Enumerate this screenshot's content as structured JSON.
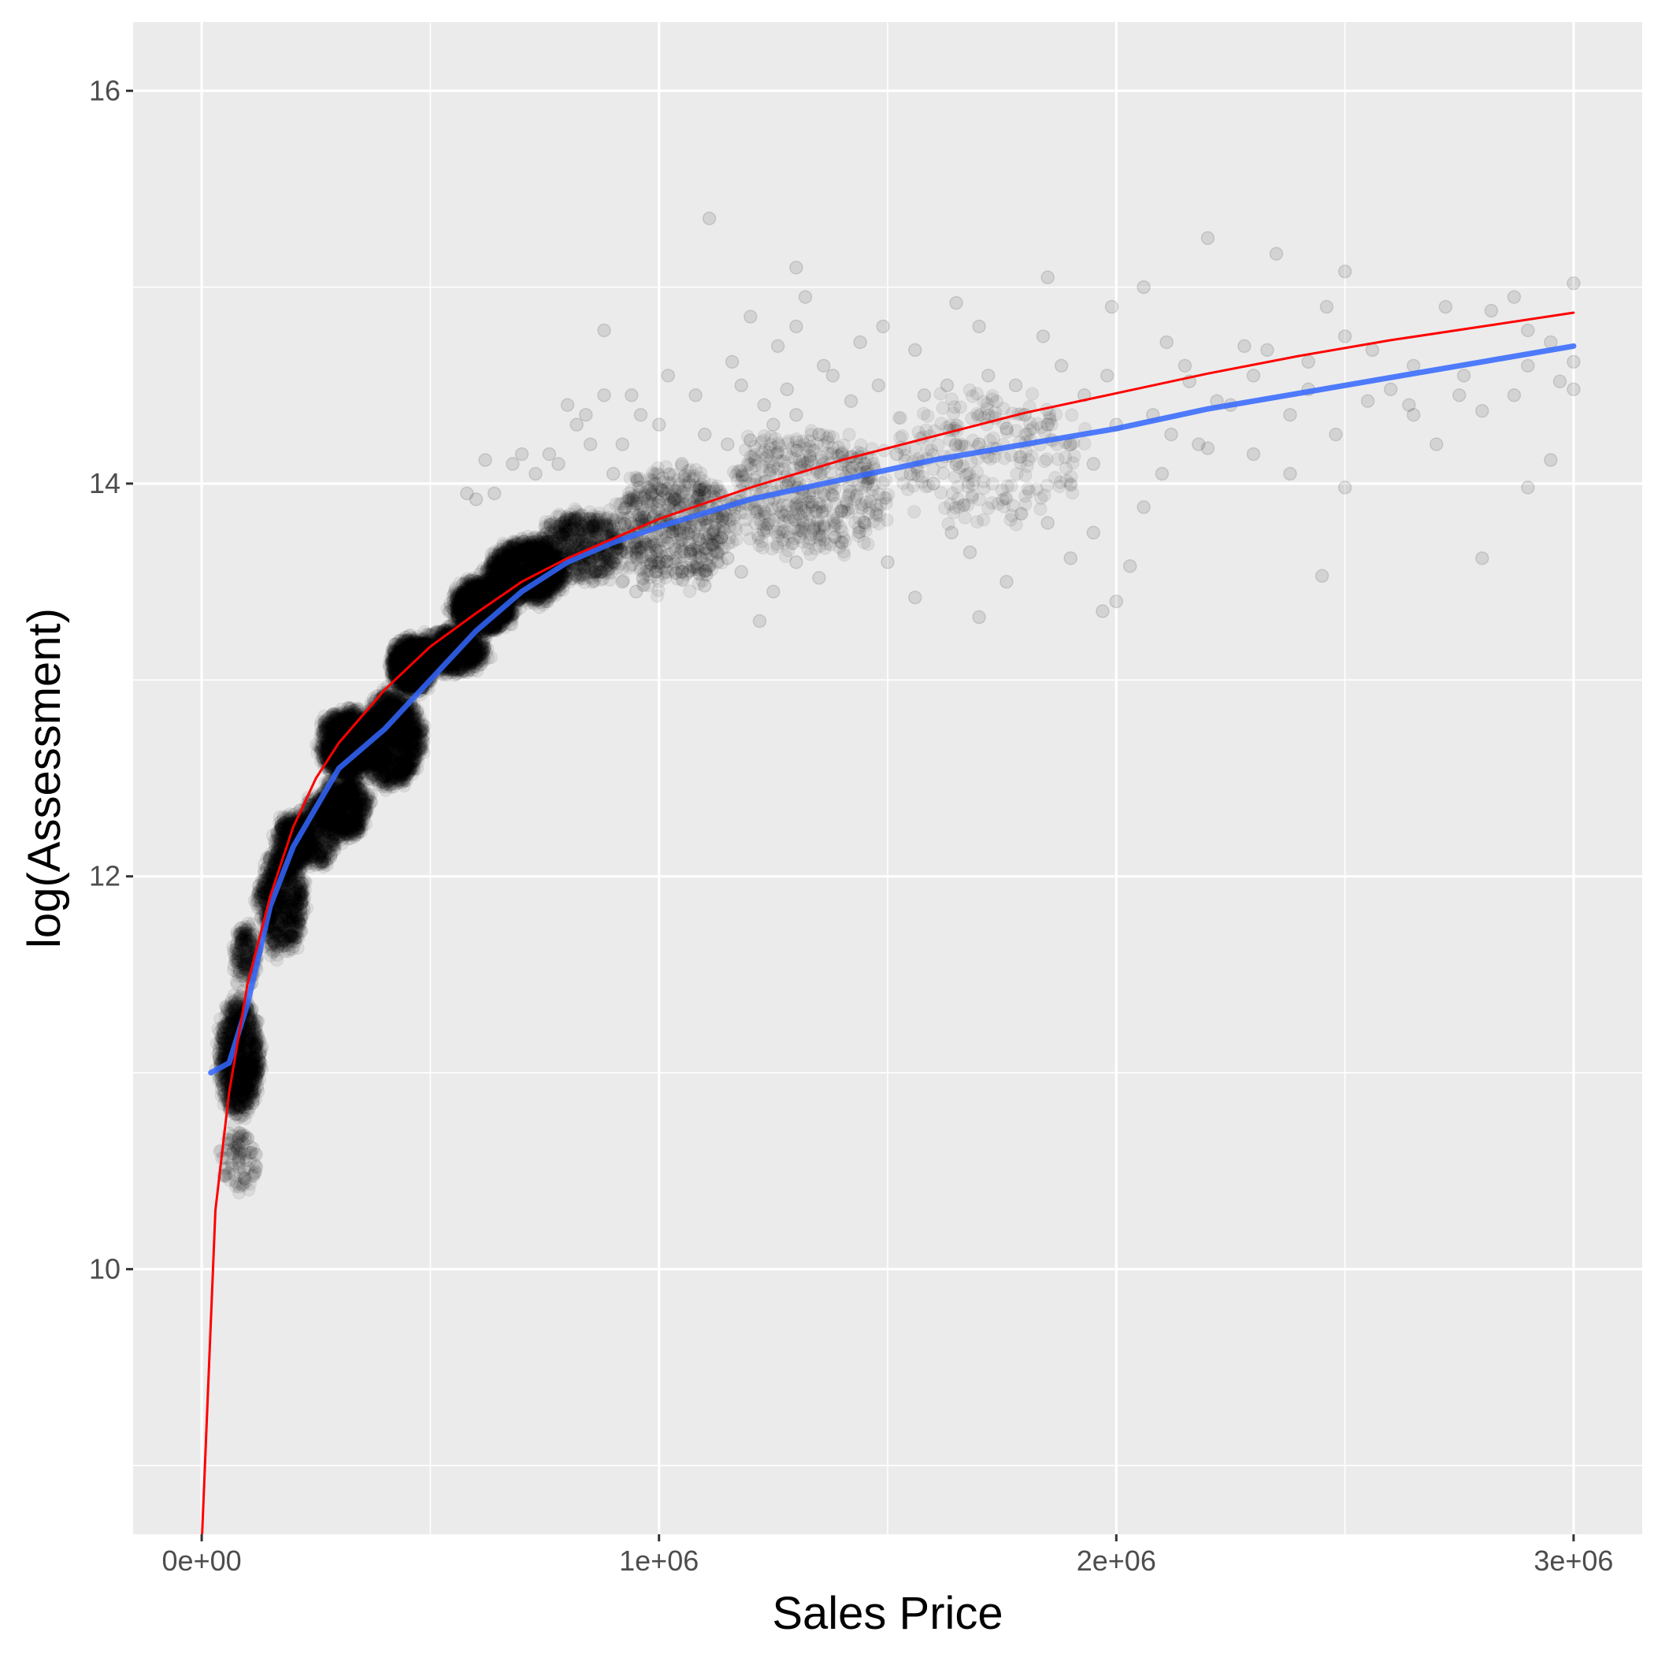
{
  "chart_data": {
    "type": "scatter",
    "xlabel": "Sales Price",
    "ylabel": "log(Assessment)",
    "xlim": [
      -150000,
      3150000
    ],
    "ylim": [
      8.65,
      16.35
    ],
    "x_ticks": [
      {
        "value": 0,
        "label": "0e+00"
      },
      {
        "value": 1000000,
        "label": "1e+06"
      },
      {
        "value": 2000000,
        "label": "2e+06"
      },
      {
        "value": 3000000,
        "label": "3e+06"
      }
    ],
    "y_ticks": [
      {
        "value": 10,
        "label": "10"
      },
      {
        "value": 12,
        "label": "12"
      },
      {
        "value": 14,
        "label": "14"
      },
      {
        "value": 16,
        "label": "16"
      }
    ],
    "x_minor_gridlines": [
      500000,
      1500000,
      2500000
    ],
    "y_minor_gridlines": [
      9,
      11,
      13,
      15
    ],
    "grid": true,
    "background": "#ebebeb",
    "point_color": "#000000",
    "point_alpha": 0.07,
    "points": [
      [
        1110000,
        15.35
      ],
      [
        1300000,
        15.1
      ],
      [
        1320000,
        14.95
      ],
      [
        1300000,
        14.8
      ],
      [
        880000,
        14.78
      ],
      [
        1490000,
        14.8
      ],
      [
        1650000,
        14.92
      ],
      [
        1850000,
        15.05
      ],
      [
        2060000,
        15.0
      ],
      [
        2200000,
        15.25
      ],
      [
        2350000,
        15.17
      ],
      [
        2500000,
        15.08
      ],
      [
        2280000,
        14.7
      ],
      [
        2460000,
        14.9
      ],
      [
        2500000,
        14.75
      ],
      [
        2720000,
        14.9
      ],
      [
        2870000,
        14.95
      ],
      [
        3000000,
        15.02
      ],
      [
        2820000,
        14.88
      ],
      [
        2900000,
        14.78
      ],
      [
        2950000,
        14.72
      ],
      [
        3000000,
        14.62
      ],
      [
        3000000,
        14.48
      ],
      [
        2970000,
        14.52
      ],
      [
        2870000,
        14.45
      ],
      [
        2800000,
        14.37
      ],
      [
        2750000,
        14.45
      ],
      [
        2650000,
        14.6
      ],
      [
        2600000,
        14.48
      ],
      [
        2550000,
        14.42
      ],
      [
        2420000,
        14.48
      ],
      [
        2380000,
        14.35
      ],
      [
        2300000,
        14.55
      ],
      [
        2250000,
        14.4
      ],
      [
        2180000,
        14.2
      ],
      [
        2120000,
        14.25
      ],
      [
        2080000,
        14.35
      ],
      [
        2000000,
        14.3
      ],
      [
        1950000,
        14.1
      ],
      [
        1900000,
        14.2
      ],
      [
        1850000,
        14.3
      ],
      [
        1800000,
        14.35
      ],
      [
        1760000,
        14.28
      ],
      [
        1700000,
        14.2
      ],
      [
        1650000,
        14.1
      ],
      [
        1600000,
        14.0
      ],
      [
        1550000,
        14.05
      ],
      [
        1520000,
        14.15
      ],
      [
        1450000,
        14.1
      ],
      [
        1400000,
        14.15
      ],
      [
        1350000,
        14.25
      ],
      [
        1300000,
        14.35
      ],
      [
        1250000,
        14.3
      ],
      [
        1200000,
        14.22
      ],
      [
        1150000,
        14.2
      ],
      [
        1100000,
        14.25
      ],
      [
        1050000,
        14.1
      ],
      [
        1000000,
        14.3
      ],
      [
        960000,
        14.35
      ],
      [
        920000,
        14.2
      ],
      [
        900000,
        14.05
      ],
      [
        880000,
        14.45
      ],
      [
        850000,
        14.2
      ],
      [
        820000,
        14.3
      ],
      [
        780000,
        14.1
      ],
      [
        760000,
        14.15
      ],
      [
        730000,
        14.05
      ],
      [
        2950000,
        14.12
      ],
      [
        2900000,
        13.98
      ],
      [
        2800000,
        13.62
      ],
      [
        2700000,
        14.2
      ],
      [
        2650000,
        14.35
      ],
      [
        2500000,
        13.98
      ],
      [
        2480000,
        14.25
      ],
      [
        2450000,
        13.53
      ],
      [
        2380000,
        14.05
      ],
      [
        2300000,
        14.15
      ],
      [
        2200000,
        14.18
      ],
      [
        2100000,
        14.05
      ],
      [
        2060000,
        13.88
      ],
      [
        2030000,
        13.58
      ],
      [
        2000000,
        13.4
      ],
      [
        1970000,
        13.35
      ],
      [
        1950000,
        13.75
      ],
      [
        1900000,
        13.62
      ],
      [
        1850000,
        13.8
      ],
      [
        1760000,
        13.5
      ],
      [
        1700000,
        13.32
      ],
      [
        1680000,
        13.65
      ],
      [
        1640000,
        13.75
      ],
      [
        1560000,
        13.42
      ],
      [
        1500000,
        13.6
      ],
      [
        1450000,
        13.8
      ],
      [
        1400000,
        13.7
      ],
      [
        1350000,
        13.52
      ],
      [
        1300000,
        13.6
      ],
      [
        1250000,
        13.45
      ],
      [
        1220000,
        13.3
      ],
      [
        1180000,
        13.55
      ],
      [
        1150000,
        13.62
      ],
      [
        1100000,
        13.48
      ],
      [
        1050000,
        13.55
      ],
      [
        1000000,
        13.6
      ],
      [
        950000,
        13.45
      ],
      [
        920000,
        13.5
      ],
      [
        900000,
        13.6
      ],
      [
        870000,
        13.68
      ],
      [
        2220000,
        14.42
      ],
      [
        2150000,
        14.6
      ],
      [
        1980000,
        14.55
      ],
      [
        1930000,
        14.45
      ],
      [
        1880000,
        14.6
      ],
      [
        1780000,
        14.5
      ],
      [
        1720000,
        14.55
      ],
      [
        1630000,
        14.5
      ],
      [
        1580000,
        14.45
      ],
      [
        1480000,
        14.5
      ],
      [
        1420000,
        14.42
      ],
      [
        1380000,
        14.55
      ],
      [
        1280000,
        14.48
      ],
      [
        1230000,
        14.4
      ],
      [
        1180000,
        14.5
      ],
      [
        1080000,
        14.45
      ],
      [
        1020000,
        14.55
      ],
      [
        940000,
        14.45
      ],
      [
        2560000,
        14.68
      ],
      [
        2420000,
        14.62
      ],
      [
        2330000,
        14.68
      ],
      [
        2160000,
        14.52
      ],
      [
        2640000,
        14.4
      ],
      [
        2760000,
        14.55
      ],
      [
        2900000,
        14.6
      ],
      [
        1990000,
        14.9
      ],
      [
        2110000,
        14.72
      ],
      [
        1840000,
        14.75
      ],
      [
        1700000,
        14.8
      ],
      [
        1560000,
        14.68
      ],
      [
        1440000,
        14.72
      ],
      [
        1360000,
        14.6
      ],
      [
        1260000,
        14.7
      ],
      [
        1200000,
        14.85
      ],
      [
        1160000,
        14.62
      ],
      [
        840000,
        14.35
      ],
      [
        800000,
        14.4
      ],
      [
        700000,
        14.15
      ],
      [
        680000,
        14.1
      ],
      [
        640000,
        13.95
      ],
      [
        620000,
        14.12
      ],
      [
        600000,
        13.92
      ],
      [
        580000,
        13.95
      ]
    ],
    "point_clusters": [
      {
        "x": [
          25000,
          140000
        ],
        "y": [
          10.7,
          11.45
        ],
        "count": 1100
      },
      {
        "x": [
          30000,
          135000
        ],
        "y": [
          10.35,
          10.75
        ],
        "count": 100
      },
      {
        "x": [
          60000,
          130000
        ],
        "y": [
          11.4,
          11.8
        ],
        "count": 200
      },
      {
        "x": [
          110000,
          240000
        ],
        "y": [
          11.55,
          12.2
        ],
        "count": 900
      },
      {
        "x": [
          150000,
          250000
        ],
        "y": [
          12.0,
          12.35
        ],
        "count": 500
      },
      {
        "x": [
          200000,
          310000
        ],
        "y": [
          12.0,
          12.45
        ],
        "count": 500
      },
      {
        "x": [
          240000,
          380000
        ],
        "y": [
          12.15,
          12.55
        ],
        "count": 800
      },
      {
        "x": [
          240000,
          400000
        ],
        "y": [
          12.45,
          12.9
        ],
        "count": 1200
      },
      {
        "x": [
          330000,
          500000
        ],
        "y": [
          12.4,
          13.0
        ],
        "count": 1500
      },
      {
        "x": [
          400000,
          520000
        ],
        "y": [
          12.9,
          13.25
        ],
        "count": 1200
      },
      {
        "x": [
          460000,
          640000
        ],
        "y": [
          13.0,
          13.3
        ],
        "count": 900
      },
      {
        "x": [
          530000,
          700000
        ],
        "y": [
          13.2,
          13.55
        ],
        "count": 1400
      },
      {
        "x": [
          600000,
          820000
        ],
        "y": [
          13.35,
          13.75
        ],
        "count": 1400
      },
      {
        "x": [
          700000,
          950000
        ],
        "y": [
          13.45,
          13.9
        ],
        "count": 700
      },
      {
        "x": [
          850000,
          1200000
        ],
        "y": [
          13.4,
          14.15
        ],
        "count": 600
      },
      {
        "x": [
          1100000,
          1550000
        ],
        "y": [
          13.55,
          14.35
        ],
        "count": 450
      },
      {
        "x": [
          1450000,
          2000000
        ],
        "y": [
          13.7,
          14.55
        ],
        "count": 220
      }
    ],
    "series": [
      {
        "type": "line",
        "color": "#ff0000",
        "width": 3,
        "x": [
          0,
          30000,
          60000,
          100000,
          150000,
          200000,
          250000,
          300000,
          400000,
          500000,
          600000,
          700000,
          800000,
          900000,
          1000000,
          1200000,
          1400000,
          1600000,
          1800000,
          2000000,
          2200000,
          2400000,
          2600000,
          2800000,
          3000000
        ],
        "y": [
          8.6,
          10.3,
          10.9,
          11.45,
          11.9,
          12.25,
          12.5,
          12.68,
          12.95,
          13.17,
          13.34,
          13.5,
          13.62,
          13.72,
          13.82,
          13.98,
          14.12,
          14.24,
          14.36,
          14.46,
          14.56,
          14.65,
          14.73,
          14.8,
          14.87
        ]
      },
      {
        "type": "line",
        "color": "#3366ff",
        "width": 7,
        "x": [
          20000,
          60000,
          100000,
          150000,
          200000,
          250000,
          300000,
          400000,
          500000,
          600000,
          700000,
          800000,
          900000,
          1000000,
          1200000,
          1400000,
          1600000,
          1800000,
          2000000,
          2200000,
          2400000,
          2600000,
          2800000,
          3000000
        ],
        "y": [
          11.0,
          11.05,
          11.35,
          11.85,
          12.15,
          12.35,
          12.55,
          12.75,
          13.0,
          13.25,
          13.45,
          13.6,
          13.7,
          13.78,
          13.92,
          14.02,
          14.12,
          14.2,
          14.28,
          14.38,
          14.46,
          14.54,
          14.62,
          14.7
        ]
      }
    ]
  }
}
